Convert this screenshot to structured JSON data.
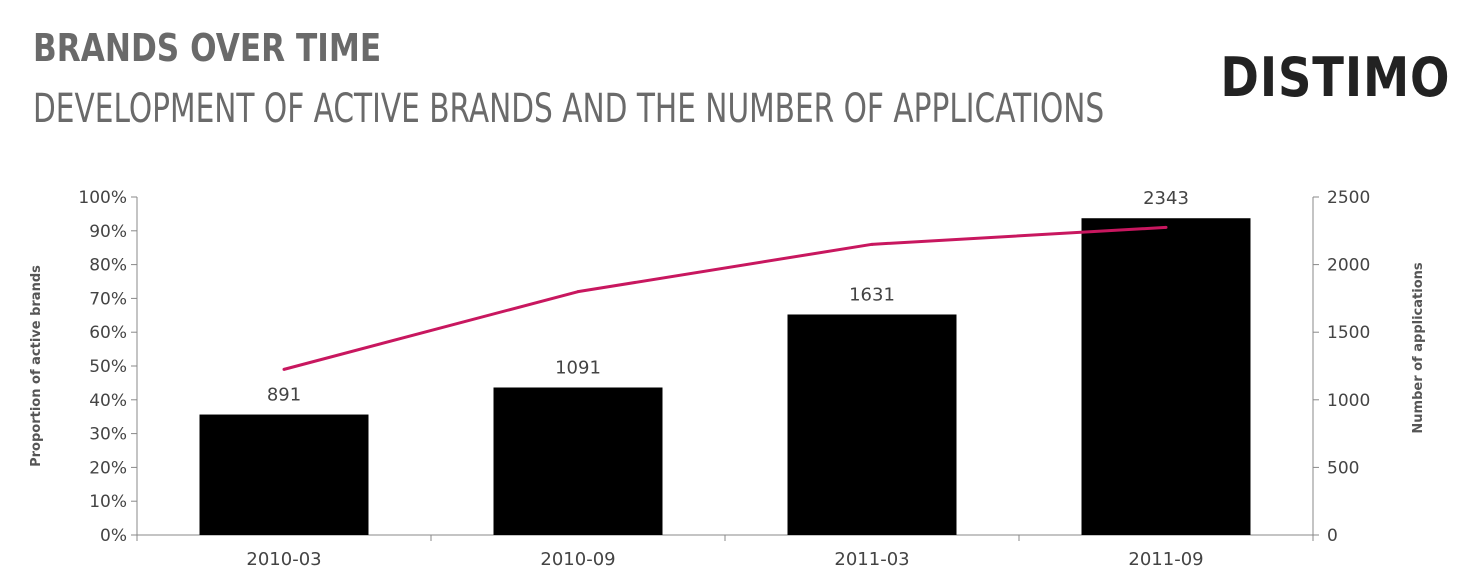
{
  "header": {
    "title": "BRANDS OVER TIME",
    "subtitle": "DEVELOPMENT OF ACTIVE BRANDS AND THE NUMBER OF APPLICATIONS",
    "logo": "DISTIMO"
  },
  "colors": {
    "bar": "#000000",
    "line": "#c8175f",
    "axis": "#888888",
    "text": "#444444",
    "title": "#6a6a6a"
  },
  "chart_data": {
    "type": "bar+line",
    "categories": [
      "2010-03",
      "2010-09",
      "2011-03",
      "2011-09"
    ],
    "series": [
      {
        "name": "",
        "type": "bar",
        "axis": "right",
        "values": [
          891,
          1091,
          1631,
          2343
        ]
      },
      {
        "name": "",
        "type": "line",
        "axis": "left",
        "values": [
          49,
          72,
          86,
          91
        ],
        "unit": "%"
      }
    ],
    "left_axis": {
      "label": "Proportion of active brands",
      "ylim": [
        0,
        100
      ],
      "ticks": [
        "0%",
        "10%",
        "20%",
        "30%",
        "40%",
        "50%",
        "60%",
        "70%",
        "80%",
        "90%",
        "100%"
      ]
    },
    "right_axis": {
      "label": "Number of applications",
      "ylim": [
        0,
        2500
      ],
      "ticks": [
        "0",
        "500",
        "1000",
        "1500",
        "2000",
        "2500"
      ]
    },
    "data_labels": [
      "891",
      "1091",
      "1631",
      "2343"
    ],
    "grid": false,
    "legend": "none"
  }
}
